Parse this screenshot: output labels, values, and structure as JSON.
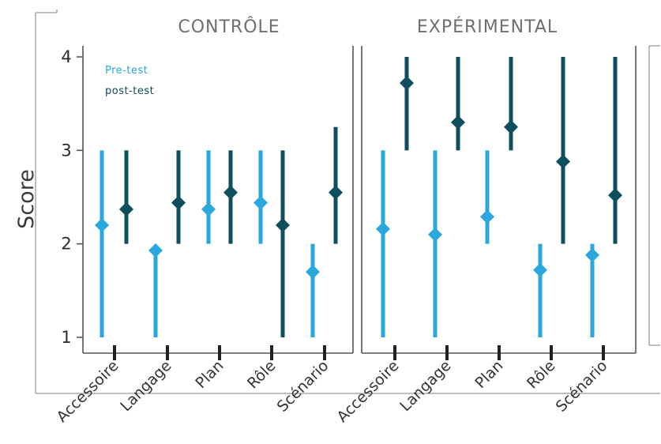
{
  "chart_data": {
    "type": "scatter",
    "ylabel": "Score",
    "ylim": [
      1,
      4
    ],
    "yticks": [
      1,
      2,
      3,
      4
    ],
    "legend": {
      "placement": "top-left",
      "entries": [
        {
          "label": "Pre-test",
          "color": "#2aa7dc"
        },
        {
          "label": "post-test",
          "color": "#0f4e5c"
        }
      ]
    },
    "categories": [
      "Accessoire",
      "Langage",
      "Plan",
      "Rôle",
      "Scénario"
    ],
    "panels": [
      {
        "title": "CONTRÔLE",
        "series": [
          {
            "name": "Pre-test",
            "color": "#2aa7dc",
            "values": [
              2.2,
              1.93,
              2.37,
              2.44,
              1.7
            ],
            "ranges": [
              [
                1,
                3
              ],
              [
                1,
                1.95
              ],
              [
                2,
                3
              ],
              [
                2,
                3
              ],
              [
                1,
                2
              ]
            ]
          },
          {
            "name": "post-test",
            "color": "#0f4e5c",
            "values": [
              2.37,
              2.44,
              2.55,
              2.2,
              2.55
            ],
            "ranges": [
              [
                2,
                3
              ],
              [
                2,
                3
              ],
              [
                2,
                3
              ],
              [
                1,
                3
              ],
              [
                2,
                3.25
              ]
            ]
          }
        ]
      },
      {
        "title": "EXPÉRIMENTAL",
        "series": [
          {
            "name": "Pre-test",
            "color": "#2aa7dc",
            "values": [
              2.16,
              2.1,
              2.29,
              1.72,
              1.88
            ],
            "ranges": [
              [
                1,
                3
              ],
              [
                1,
                3
              ],
              [
                2,
                3
              ],
              [
                1,
                2
              ],
              [
                1,
                2
              ]
            ]
          },
          {
            "name": "post-test",
            "color": "#0f4e5c",
            "values": [
              3.72,
              3.3,
              3.25,
              2.88,
              2.52
            ],
            "ranges": [
              [
                3,
                4
              ],
              [
                3,
                4
              ],
              [
                3,
                4
              ],
              [
                2,
                4
              ],
              [
                2,
                4
              ]
            ]
          }
        ]
      }
    ]
  }
}
